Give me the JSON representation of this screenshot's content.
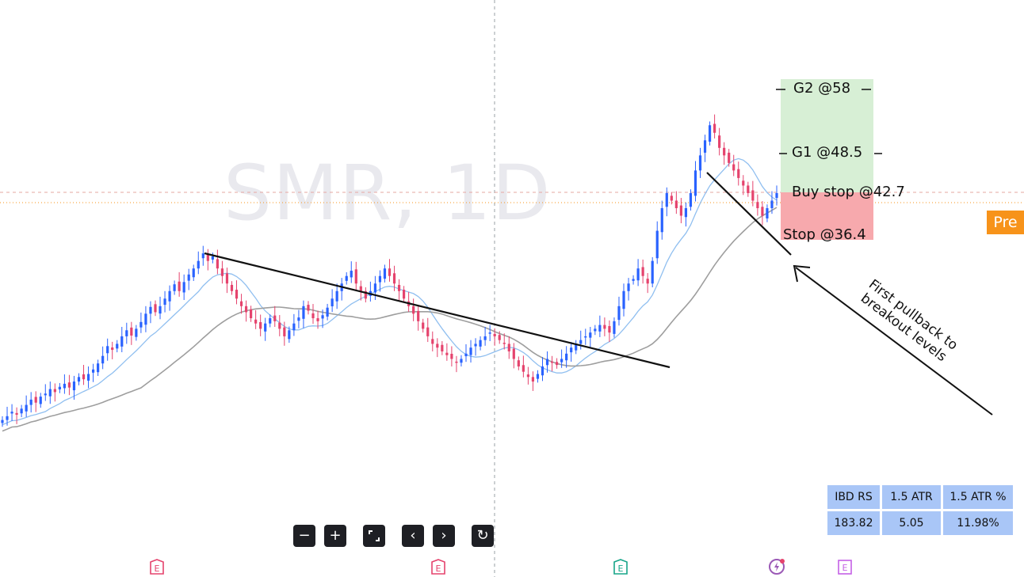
{
  "watermark": "SMR, 1D",
  "badge": "Pre",
  "labels": {
    "g2": "G2 @58",
    "g1": "G1 @48.5",
    "buy_stop": "Buy stop @42.7",
    "stop": "Stop @36.4",
    "annotation_line1": "First pullback to",
    "annotation_line2": "breakout levels"
  },
  "stats_table": {
    "headers": [
      "IBD RS",
      "1.5 ATR",
      "1.5 ATR %"
    ],
    "values": [
      "183.82",
      "5.05",
      "11.98%"
    ]
  },
  "toolbar_icons": [
    "zoom-out-icon",
    "zoom-in-icon",
    "fullscreen-icon",
    "scroll-left-icon",
    "scroll-right-icon",
    "reset-icon"
  ],
  "colors": {
    "up": "#2962ff",
    "down": "#e5436d",
    "ma_fast": "#90bff0",
    "ma_slow": "#9e9e9e",
    "target_zone": "#d7efd5",
    "stop_zone": "#f7a9ad",
    "badge": "#f7931a",
    "table": "#a9c6f7"
  },
  "chart_data": {
    "type": "candlestick",
    "symbol": "SMR",
    "interval": "1D",
    "levels": {
      "g2": 58,
      "g1": 48.5,
      "buy_stop": 42.7,
      "stop": 36.4
    },
    "closes": [
      12.5,
      13.0,
      13.6,
      13.2,
      14.0,
      14.5,
      15.2,
      14.8,
      15.6,
      16.0,
      16.6,
      16.2,
      16.9,
      17.3,
      16.8,
      17.6,
      18.2,
      17.9,
      18.6,
      19.2,
      20.0,
      21.0,
      22.3,
      21.8,
      22.6,
      23.6,
      24.4,
      23.7,
      24.6,
      25.5,
      26.6,
      27.5,
      26.8,
      27.6,
      28.6,
      29.6,
      30.5,
      29.6,
      30.8,
      31.8,
      32.6,
      33.6,
      34.6,
      33.6,
      34.2,
      32.6,
      31.6,
      30.6,
      29.6,
      28.6,
      27.6,
      26.8,
      26.0,
      25.3,
      24.6,
      25.3,
      26.0,
      25.6,
      24.6,
      23.6,
      24.4,
      25.3,
      26.1,
      27.6,
      27.0,
      26.0,
      25.6,
      26.4,
      27.4,
      28.6,
      29.6,
      30.6,
      31.6,
      32.3,
      30.6,
      29.6,
      28.6,
      29.6,
      30.6,
      31.6,
      32.6,
      31.6,
      30.6,
      29.6,
      28.6,
      27.6,
      26.6,
      25.6,
      24.6,
      23.6,
      22.6,
      22.1,
      21.6,
      21.1,
      20.6,
      20.1,
      20.6,
      21.3,
      22.1,
      22.6,
      23.1,
      23.6,
      24.1,
      23.6,
      23.1,
      22.6,
      21.6,
      20.6,
      19.6,
      18.9,
      18.2,
      17.6,
      18.6,
      19.6,
      20.6,
      20.2,
      19.8,
      20.6,
      21.3,
      22.1,
      22.6,
      23.1,
      23.6,
      24.1,
      24.6,
      25.1,
      24.6,
      24.1,
      25.6,
      27.6,
      29.6,
      30.6,
      31.2,
      32.6,
      31.6,
      30.6,
      33.6,
      37.6,
      40.6,
      42.6,
      41.6,
      40.6,
      39.6,
      40.6,
      42.6,
      45.6,
      47.6,
      49.6,
      51.6,
      50.6,
      48.6,
      47.6,
      46.6,
      45.6,
      44.6,
      43.6,
      42.6,
      41.6,
      40.6,
      39.6,
      40.6,
      41.6,
      42.6
    ]
  }
}
